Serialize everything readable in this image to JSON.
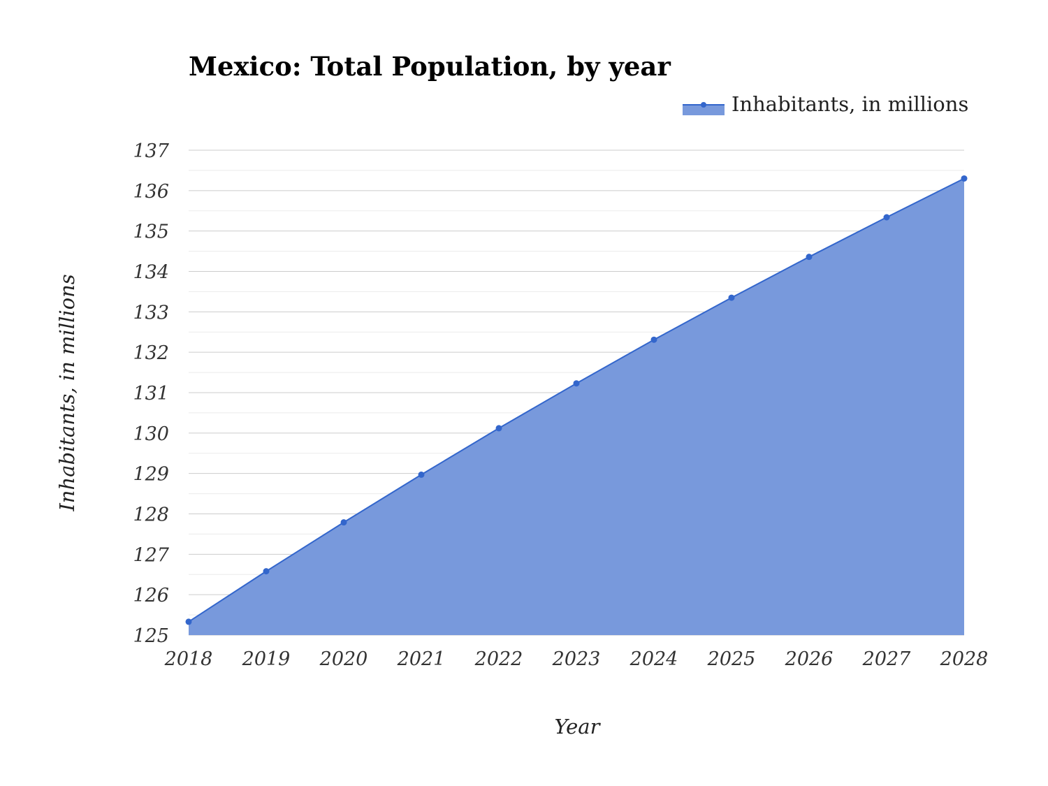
{
  "chart_data": {
    "type": "area",
    "title": "Mexico: Total Population, by year",
    "xlabel": "Year",
    "ylabel": "Inhabitants, in millions",
    "x": [
      2018,
      2019,
      2020,
      2021,
      2022,
      2023,
      2024,
      2025,
      2026,
      2027,
      2028
    ],
    "x_ticks": [
      "2018",
      "2019",
      "2020",
      "2021",
      "2022",
      "2023",
      "2024",
      "2025",
      "2026",
      "2027",
      "2028"
    ],
    "y_ticks": [
      "125",
      "126",
      "127",
      "128",
      "129",
      "130",
      "131",
      "132",
      "133",
      "134",
      "135",
      "136",
      "137"
    ],
    "ylim": [
      125,
      137
    ],
    "grid": true,
    "legend_position": "top-right",
    "series": [
      {
        "name": "Inhabitants, in millions",
        "values": [
          125.33,
          126.58,
          127.79,
          128.97,
          130.12,
          131.23,
          132.31,
          133.35,
          134.36,
          135.34,
          136.3
        ],
        "color": "#3366cc",
        "fill": "#7899dc"
      }
    ]
  }
}
